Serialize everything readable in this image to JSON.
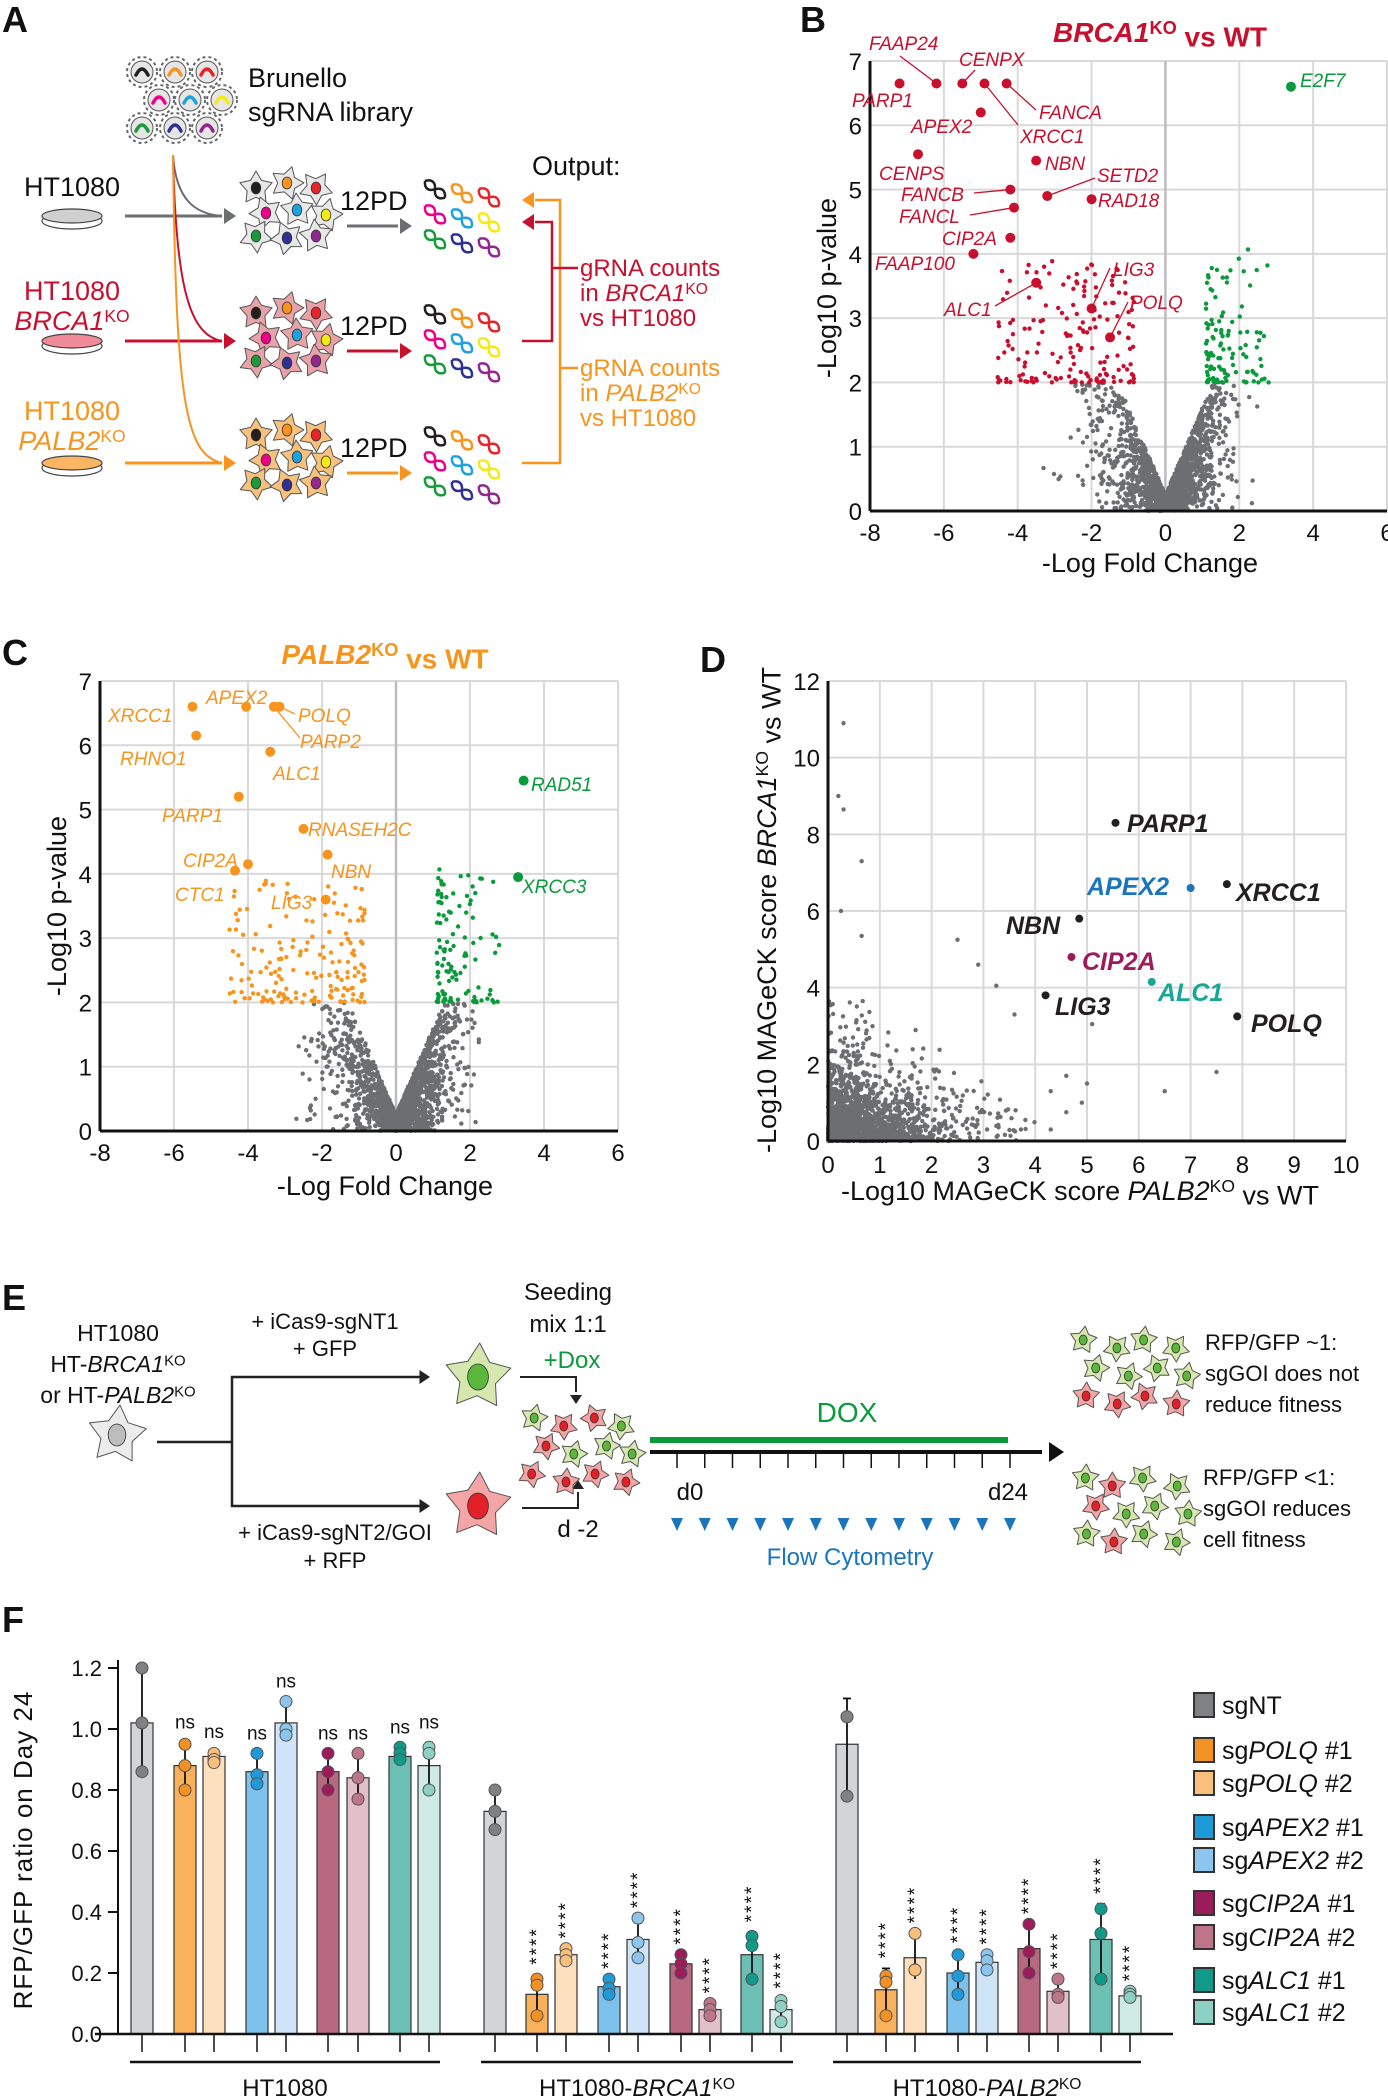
{
  "panel_labels": {
    "a": "A",
    "b": "B",
    "c": "C",
    "d": "D",
    "e": "E",
    "f": "F"
  },
  "panel_a": {
    "library": [
      "Brunello",
      "sgRNA library"
    ],
    "rows": [
      [
        {
          "t": "HT1080"
        }
      ],
      [
        {
          "t": "HT1080"
        }
      ],
      [
        {
          "t": "HT1080"
        }
      ]
    ],
    "row_genes": [
      null,
      [
        {
          "t": "BRCA1",
          "i": true
        },
        {
          "t": "KO",
          "sup": true
        }
      ],
      [
        {
          "t": "PALB2",
          "i": true
        },
        {
          "t": "KO",
          "sup": true
        }
      ]
    ],
    "pd_label": "12PD",
    "output": "Output:",
    "brca1_out": [
      [
        {
          "t": "gRNA counts"
        }
      ],
      [
        {
          "t": "in "
        },
        {
          "t": "BRCA1",
          "i": true
        },
        {
          "t": "KO",
          "sup": true
        }
      ],
      [
        {
          "t": "vs HT1080"
        }
      ]
    ],
    "palb2_out": [
      [
        {
          "t": "gRNA counts"
        }
      ],
      [
        {
          "t": "in "
        },
        {
          "t": "PALB2",
          "i": true
        },
        {
          "t": "KO",
          "sup": true
        }
      ],
      [
        {
          "t": "vs HT1080"
        }
      ]
    ],
    "colors": {
      "wt": "#6d6e71",
      "brca1": "#c8102e",
      "palb2": "#f7941d"
    }
  },
  "chart_data": [
    {
      "id": "B",
      "type": "scatter",
      "title": [
        {
          "t": "BRCA1",
          "i": true
        },
        {
          "t": "KO",
          "sup": true
        },
        {
          "t": " vs WT"
        }
      ],
      "xlabel": "-Log Fold Change",
      "ylabel": "-Log10 p-value",
      "xlim": [
        -8,
        6
      ],
      "ylim": [
        0,
        7
      ],
      "xticks": [
        -8,
        -6,
        -4,
        -2,
        0,
        2,
        4,
        6
      ],
      "yticks": [
        0,
        1,
        2,
        3,
        4,
        5,
        6,
        7
      ],
      "grid": true,
      "colors": {
        "depleted": "#c8102e",
        "enriched": "#0a9a3c",
        "background": "#6d6e71"
      },
      "highlighted": [
        {
          "gene": "PARP1",
          "x": -7.2,
          "y": 6.65,
          "group": "depleted"
        },
        {
          "gene": "FAAP24",
          "x": -6.2,
          "y": 6.65,
          "group": "depleted"
        },
        {
          "gene": "CENPX",
          "x": -5.5,
          "y": 6.65,
          "group": "depleted"
        },
        {
          "gene": "XRCC1",
          "x": -4.9,
          "y": 6.65,
          "group": "depleted"
        },
        {
          "gene": "FANCA",
          "x": -4.3,
          "y": 6.65,
          "group": "depleted"
        },
        {
          "gene": "APEX2",
          "x": -5.0,
          "y": 6.2,
          "group": "depleted"
        },
        {
          "gene": "CENPS",
          "x": -6.7,
          "y": 5.55,
          "group": "depleted"
        },
        {
          "gene": "NBN",
          "x": -3.5,
          "y": 5.45,
          "group": "depleted"
        },
        {
          "gene": "FANCB",
          "x": -4.2,
          "y": 5.0,
          "group": "depleted"
        },
        {
          "gene": "SETD2",
          "x": -3.2,
          "y": 4.9,
          "group": "depleted"
        },
        {
          "gene": "RAD18",
          "x": -2.0,
          "y": 4.85,
          "group": "depleted"
        },
        {
          "gene": "FANCL",
          "x": -4.1,
          "y": 4.72,
          "group": "depleted"
        },
        {
          "gene": "CIP2A",
          "x": -4.2,
          "y": 4.25,
          "group": "depleted"
        },
        {
          "gene": "FAAP100",
          "x": -5.2,
          "y": 4.0,
          "group": "depleted"
        },
        {
          "gene": "ALC1",
          "x": -3.5,
          "y": 3.55,
          "group": "depleted"
        },
        {
          "gene": "LIG3",
          "x": -2.0,
          "y": 3.15,
          "group": "depleted"
        },
        {
          "gene": "POLQ",
          "x": -1.5,
          "y": 2.7,
          "group": "depleted"
        },
        {
          "gene": "E2F7",
          "x": 3.4,
          "y": 6.6,
          "group": "enriched"
        }
      ]
    },
    {
      "id": "C",
      "type": "scatter",
      "title": [
        {
          "t": "PALB2",
          "i": true
        },
        {
          "t": "KO",
          "sup": true
        },
        {
          "t": " vs WT"
        }
      ],
      "xlabel": "-Log Fold Change",
      "ylabel": "-Log10 p-value",
      "xlim": [
        -8,
        6
      ],
      "ylim": [
        0,
        7
      ],
      "xticks": [
        -8,
        -6,
        -4,
        -2,
        0,
        2,
        4,
        6
      ],
      "yticks": [
        0,
        1,
        2,
        3,
        4,
        5,
        6,
        7
      ],
      "grid": true,
      "colors": {
        "depleted": "#f7941d",
        "enriched": "#0a9a3c",
        "background": "#6d6e71"
      },
      "highlighted": [
        {
          "gene": "XRCC1",
          "x": -5.5,
          "y": 6.6,
          "group": "depleted"
        },
        {
          "gene": "APEX2",
          "x": -4.05,
          "y": 6.6,
          "group": "depleted"
        },
        {
          "gene": "PARP2",
          "x": -3.3,
          "y": 6.6,
          "group": "depleted"
        },
        {
          "gene": "POLQ",
          "x": -3.15,
          "y": 6.6,
          "group": "depleted"
        },
        {
          "gene": "RHNO1",
          "x": -5.4,
          "y": 6.15,
          "group": "depleted"
        },
        {
          "gene": "ALC1",
          "x": -3.4,
          "y": 5.9,
          "group": "depleted"
        },
        {
          "gene": "PARP1",
          "x": -4.25,
          "y": 5.2,
          "group": "depleted"
        },
        {
          "gene": "RNASEH2C",
          "x": -2.5,
          "y": 4.7,
          "group": "depleted"
        },
        {
          "gene": "NBN",
          "x": -1.85,
          "y": 4.3,
          "group": "depleted"
        },
        {
          "gene": "CIP2A",
          "x": -4.0,
          "y": 4.15,
          "group": "depleted"
        },
        {
          "gene": "CTC1",
          "x": -4.35,
          "y": 4.05,
          "group": "depleted"
        },
        {
          "gene": "LIG3",
          "x": -1.9,
          "y": 3.6,
          "group": "depleted"
        },
        {
          "gene": "RAD51",
          "x": 3.45,
          "y": 5.45,
          "group": "enriched"
        },
        {
          "gene": "XRCC3",
          "x": 3.3,
          "y": 3.95,
          "group": "enriched"
        }
      ]
    },
    {
      "id": "D",
      "type": "scatter",
      "xlabel": [
        {
          "t": "-Log10 MAGeCK score "
        },
        {
          "t": "PALB2",
          "i": true
        },
        {
          "t": "KO",
          "sup": true
        },
        {
          "t": " vs WT"
        }
      ],
      "ylabel": [
        {
          "t": "-Log10 MAGeCK score "
        },
        {
          "t": "BRCA1",
          "i": true
        },
        {
          "t": "KO",
          "sup": true
        },
        {
          "t": " vs WT"
        }
      ],
      "xlim": [
        0,
        10
      ],
      "ylim": [
        0,
        12
      ],
      "xticks": [
        0,
        1,
        2,
        3,
        4,
        5,
        6,
        7,
        8,
        9,
        10
      ],
      "yticks": [
        0,
        2,
        4,
        6,
        8,
        10,
        12
      ],
      "grid": true,
      "colors": {
        "background": "#6d6e71"
      },
      "highlighted": [
        {
          "gene": "PARP1",
          "x": 5.55,
          "y": 8.3,
          "color": "#231f20"
        },
        {
          "gene": "APEX2",
          "x": 7.0,
          "y": 6.6,
          "color": "#1b75bc"
        },
        {
          "gene": "XRCC1",
          "x": 7.7,
          "y": 6.7,
          "color": "#231f20"
        },
        {
          "gene": "NBN",
          "x": 4.85,
          "y": 5.8,
          "color": "#231f20"
        },
        {
          "gene": "CIP2A",
          "x": 4.7,
          "y": 4.8,
          "color": "#9b1b5b"
        },
        {
          "gene": "ALC1",
          "x": 6.25,
          "y": 4.15,
          "color": "#17a795"
        },
        {
          "gene": "LIG3",
          "x": 4.2,
          "y": 3.8,
          "color": "#231f20"
        },
        {
          "gene": "POLQ",
          "x": 7.9,
          "y": 3.25,
          "color": "#231f20"
        }
      ]
    },
    {
      "id": "F",
      "type": "bar",
      "ylabel": "RFP/GFP ratio on Day 24",
      "ylim": [
        0,
        1.2
      ],
      "yticks": [
        "0.0",
        "0.2",
        "0.4",
        "0.6",
        "0.8",
        "1.0",
        "1.2"
      ],
      "groups": [
        [
          {
            "t": "HT1080"
          }
        ],
        [
          {
            "t": "HT1080-"
          },
          {
            "t": "BRCA1",
            "i": true
          },
          {
            "t": "KO",
            "sup": true
          }
        ],
        [
          {
            "t": "HT1080-"
          },
          {
            "t": "PALB2",
            "i": true
          },
          {
            "t": "KO",
            "sup": true
          }
        ]
      ],
      "series": [
        {
          "label": [
            {
              "t": "sgNT"
            }
          ],
          "bar": "#d3d4d6",
          "dot": "#808184",
          "means": [
            1.02,
            0.73,
            0.95
          ],
          "points": [
            [
              1.2,
              1.02,
              0.86
            ],
            [
              0.8,
              0.73,
              0.67
            ],
            [
              1.04,
              1.04,
              0.78
            ]
          ],
          "sig": [
            "",
            "",
            ""
          ]
        },
        {
          "label": [
            {
              "t": "sg"
            },
            {
              "t": "POLQ",
              "i": true
            },
            {
              "t": " #1"
            }
          ],
          "bar": "#f9b15c",
          "dot": "#f39224",
          "means": [
            0.88,
            0.13,
            0.145
          ],
          "points": [
            [
              0.95,
              0.88,
              0.8
            ],
            [
              0.18,
              0.16,
              0.06
            ],
            [
              0.19,
              0.17,
              0.06
            ]
          ],
          "sig": [
            "ns",
            "****",
            "****"
          ]
        },
        {
          "label": [
            {
              "t": "sg"
            },
            {
              "t": "POLQ",
              "i": true
            },
            {
              "t": " #2"
            }
          ],
          "bar": "#fde0bd",
          "dot": "#fbbf7c",
          "means": [
            0.91,
            0.26,
            0.25
          ],
          "points": [
            [
              0.92,
              0.9,
              0.89
            ],
            [
              0.28,
              0.26,
              0.24
            ],
            [
              0.33,
              0.21,
              0.21
            ]
          ],
          "sig": [
            "ns",
            "****",
            "****"
          ]
        },
        {
          "label": [
            {
              "t": "sg"
            },
            {
              "t": "APEX2",
              "i": true
            },
            {
              "t": " #1"
            }
          ],
          "bar": "#7cc2ec",
          "dot": "#1f9ad8",
          "means": [
            0.86,
            0.155,
            0.2
          ],
          "points": [
            [
              0.92,
              0.85,
              0.82
            ],
            [
              0.18,
              0.15,
              0.13
            ],
            [
              0.26,
              0.19,
              0.13
            ]
          ],
          "sig": [
            "ns",
            "****",
            "****"
          ]
        },
        {
          "label": [
            {
              "t": "sg"
            },
            {
              "t": "APEX2",
              "i": true
            },
            {
              "t": " #2"
            }
          ],
          "bar": "#cfe5f7",
          "dot": "#8cc6ee",
          "means": [
            1.02,
            0.31,
            0.235
          ],
          "points": [
            [
              1.09,
              1.0,
              0.98
            ],
            [
              0.38,
              0.3,
              0.25
            ],
            [
              0.26,
              0.24,
              0.21
            ]
          ],
          "sig": [
            "ns",
            "****",
            "****"
          ]
        },
        {
          "label": [
            {
              "t": "sg"
            },
            {
              "t": "CIP2A",
              "i": true
            },
            {
              "t": " #1"
            }
          ],
          "bar": "#b8687f",
          "dot": "#9b1b5b",
          "means": [
            0.86,
            0.23,
            0.28
          ],
          "points": [
            [
              0.92,
              0.86,
              0.8
            ],
            [
              0.26,
              0.23,
              0.2
            ],
            [
              0.36,
              0.27,
              0.2
            ]
          ],
          "sig": [
            "ns",
            "****",
            "****"
          ]
        },
        {
          "label": [
            {
              "t": "sg"
            },
            {
              "t": "CIP2A",
              "i": true
            },
            {
              "t": " #2"
            }
          ],
          "bar": "#e2c0ca",
          "dot": "#bf7589",
          "means": [
            0.84,
            0.08,
            0.14
          ],
          "points": [
            [
              0.92,
              0.84,
              0.77
            ],
            [
              0.1,
              0.08,
              0.06
            ],
            [
              0.18,
              0.13,
              0.12
            ]
          ],
          "sig": [
            "ns",
            "****",
            "****"
          ]
        },
        {
          "label": [
            {
              "t": "sg"
            },
            {
              "t": "ALC1",
              "i": true
            },
            {
              "t": " #1"
            }
          ],
          "bar": "#6cc0b3",
          "dot": "#119a89",
          "means": [
            0.91,
            0.26,
            0.31
          ],
          "points": [
            [
              0.94,
              0.92,
              0.9
            ],
            [
              0.32,
              0.29,
              0.18
            ],
            [
              0.41,
              0.33,
              0.18
            ]
          ],
          "sig": [
            "ns",
            "****",
            "****"
          ]
        },
        {
          "label": [
            {
              "t": "sg"
            },
            {
              "t": "ALC1",
              "i": true
            },
            {
              "t": " #2"
            }
          ],
          "bar": "#d0eae5",
          "dot": "#8fd0c4",
          "means": [
            0.88,
            0.08,
            0.125
          ],
          "points": [
            [
              0.94,
              0.92,
              0.8
            ],
            [
              0.11,
              0.09,
              0.04
            ],
            [
              0.14,
              0.13,
              0.12
            ]
          ],
          "sig": [
            "ns",
            "****",
            "****"
          ]
        }
      ]
    }
  ],
  "panel_e": {
    "start": [
      [
        {
          "t": "HT1080"
        }
      ],
      [
        {
          "t": "HT-"
        },
        {
          "t": "BRCA1",
          "i": true
        },
        {
          "t": "KO",
          "sup": true
        }
      ],
      [
        {
          "t": "or HT-"
        },
        {
          "t": "PALB2",
          "i": true
        },
        {
          "t": "KO",
          "sup": true
        }
      ]
    ],
    "top_arm": [
      "+ iCas9-sgNT1",
      "+ GFP"
    ],
    "bottom_arm": [
      "+ iCas9-sgNT2/GOI",
      "+ RFP"
    ],
    "seeding": [
      "Seeding",
      "mix 1:1"
    ],
    "dox_add": "+Dox",
    "d_minus2": "d -2",
    "dox": "DOX",
    "d0": "d0",
    "d24": "d24",
    "flow": "Flow Cytometry",
    "outcome1": [
      "RFP/GFP ~1:",
      "sgGOI does not",
      "reduce fitness"
    ],
    "outcome2": [
      "RFP/GFP <1:",
      "sgGOI reduces",
      "cell fitness"
    ],
    "colors": {
      "dox": "#0a9a3c",
      "flow": "#1b75bc",
      "gfp": "#5bb73b",
      "rfp": "#e3202a"
    }
  }
}
